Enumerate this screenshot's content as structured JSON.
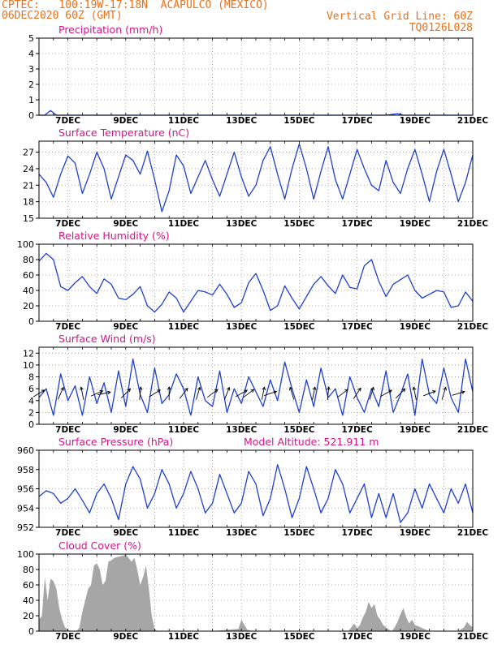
{
  "header": {
    "line1": "CPTEC:   100:19W-17:18N  ACAPULCO (MEXICO)",
    "line2": "06DEC2020 60Z (GMT)",
    "right1": "Vertical Grid Line: 60Z",
    "right2": "TQ0126L028"
  },
  "colors": {
    "header": "#e8711a",
    "title": "#d4148a",
    "line": "#1f3fcf",
    "cloud": "#a6a6a6"
  },
  "x_ticks": [
    "7DEC",
    "9DEC",
    "11DEC",
    "13DEC",
    "15DEC",
    "17DEC",
    "19DEC",
    "21DEC"
  ],
  "chart_data": [
    {
      "type": "line",
      "title": "Precipitation (mm/h)",
      "ylim": [
        0,
        5
      ],
      "yticks": [
        0,
        1,
        2,
        3,
        4,
        5
      ],
      "x_days": [
        6.0,
        6.2,
        6.4,
        6.6,
        8.0,
        12.0,
        15.0,
        18.0,
        18.4,
        18.6,
        21.0
      ],
      "values": [
        0,
        0,
        0.3,
        0,
        0,
        0,
        0,
        0,
        0.1,
        0,
        0
      ]
    },
    {
      "type": "line",
      "title": "Surface Temperature (nC)",
      "ylim": [
        15,
        29
      ],
      "yticks": [
        15,
        18,
        21,
        24,
        27
      ],
      "x_days": [
        6.0,
        6.25,
        6.5,
        6.75,
        7.0,
        7.25,
        7.5,
        7.75,
        8.0,
        8.25,
        8.5,
        8.75,
        9.0,
        9.25,
        9.5,
        9.75,
        10.0,
        10.25,
        10.5,
        10.75,
        11.0,
        11.25,
        11.5,
        11.75,
        12.0,
        12.25,
        12.5,
        12.75,
        13.0,
        13.25,
        13.5,
        13.75,
        14.0,
        14.25,
        14.5,
        14.75,
        15.0,
        15.25,
        15.5,
        15.75,
        16.0,
        16.25,
        16.5,
        16.75,
        17.0,
        17.25,
        17.5,
        17.75,
        18.0,
        18.25,
        18.5,
        18.75,
        19.0,
        19.25,
        19.5,
        19.75,
        20.0,
        20.25,
        20.5,
        20.75,
        21.0
      ],
      "values": [
        23.0,
        21.5,
        18.8,
        23.0,
        26.3,
        25.0,
        19.5,
        23.0,
        27.0,
        24.0,
        18.5,
        22.5,
        26.5,
        25.5,
        23.0,
        27.2,
        22.0,
        16.2,
        20.0,
        26.5,
        24.5,
        19.5,
        22.5,
        25.5,
        22.0,
        19.0,
        23.0,
        27.0,
        22.5,
        19.0,
        21.0,
        25.5,
        28.0,
        23.0,
        18.5,
        24.0,
        28.5,
        24.0,
        18.5,
        23.5,
        28.0,
        22.0,
        18.5,
        23.0,
        27.5,
        24.0,
        21.0,
        20.0,
        25.5,
        21.5,
        19.5,
        24.0,
        27.5,
        23.0,
        18.0,
        23.5,
        27.5,
        23.0,
        18.0,
        21.5,
        26.5
      ]
    },
    {
      "type": "line",
      "title": "Relative Humidity (%)",
      "ylim": [
        0,
        100
      ],
      "yticks": [
        0,
        20,
        40,
        60,
        80,
        100
      ],
      "x_days": [
        6.0,
        6.25,
        6.5,
        6.75,
        7.0,
        7.25,
        7.5,
        7.75,
        8.0,
        8.25,
        8.5,
        8.75,
        9.0,
        9.25,
        9.5,
        9.75,
        10.0,
        10.25,
        10.5,
        10.75,
        11.0,
        11.25,
        11.5,
        11.75,
        12.0,
        12.25,
        12.5,
        12.75,
        13.0,
        13.25,
        13.5,
        13.75,
        14.0,
        14.25,
        14.5,
        14.75,
        15.0,
        15.25,
        15.5,
        15.75,
        16.0,
        16.25,
        16.5,
        16.75,
        17.0,
        17.25,
        17.5,
        17.75,
        18.0,
        18.25,
        18.5,
        18.75,
        19.0,
        19.25,
        19.5,
        19.75,
        20.0,
        20.25,
        20.5,
        20.75,
        21.0
      ],
      "values": [
        78,
        88,
        80,
        45,
        40,
        50,
        58,
        45,
        36,
        55,
        48,
        30,
        28,
        35,
        45,
        20,
        12,
        22,
        38,
        30,
        12,
        26,
        40,
        38,
        34,
        48,
        35,
        18,
        24,
        50,
        62,
        40,
        14,
        20,
        46,
        30,
        16,
        32,
        48,
        58,
        46,
        36,
        60,
        44,
        42,
        72,
        80,
        52,
        32,
        48,
        54,
        60,
        40,
        30,
        35,
        40,
        38,
        18,
        20,
        38,
        26
      ]
    },
    {
      "type": "line",
      "title": "Surface Wind (m/s)",
      "ylim": [
        0,
        13
      ],
      "yticks": [
        0,
        2,
        4,
        6,
        8,
        10,
        12
      ],
      "x_days": [
        6.0,
        6.25,
        6.5,
        6.75,
        7.0,
        7.25,
        7.5,
        7.75,
        8.0,
        8.25,
        8.5,
        8.75,
        9.0,
        9.25,
        9.5,
        9.75,
        10.0,
        10.25,
        10.5,
        10.75,
        11.0,
        11.25,
        11.5,
        11.75,
        12.0,
        12.25,
        12.5,
        12.75,
        13.0,
        13.25,
        13.5,
        13.75,
        14.0,
        14.25,
        14.5,
        14.75,
        15.0,
        15.25,
        15.5,
        15.75,
        16.0,
        16.25,
        16.5,
        16.75,
        17.0,
        17.25,
        17.5,
        17.75,
        18.0,
        18.25,
        18.5,
        18.75,
        19.0,
        19.25,
        19.5,
        19.75,
        20.0,
        20.25,
        20.5,
        20.75,
        21.0
      ],
      "values": [
        4.5,
        6.0,
        1.5,
        8.5,
        4.0,
        6.5,
        1.5,
        8.0,
        3.5,
        7.0,
        2.0,
        9.0,
        3.0,
        11.0,
        5.0,
        2.0,
        9.5,
        3.5,
        5.0,
        8.5,
        6.0,
        1.5,
        8.0,
        4.0,
        3.0,
        9.0,
        2.0,
        6.0,
        3.5,
        8.0,
        5.5,
        3.0,
        7.5,
        4.0,
        10.5,
        6.0,
        2.0,
        7.5,
        3.0,
        9.5,
        4.5,
        6.0,
        1.5,
        8.0,
        4.5,
        2.0,
        6.0,
        3.0,
        9.0,
        2.0,
        5.0,
        8.5,
        1.5,
        11.0,
        5.0,
        3.5,
        9.5,
        4.5,
        2.0,
        11.0,
        5.5
      ],
      "wind_barbs": [
        {
          "day": 6.0,
          "u": 1.0,
          "v": 0.6
        },
        {
          "day": 6.75,
          "u": 0.4,
          "v": 0.9
        },
        {
          "day": 7.5,
          "u": -0.2,
          "v": 1.0
        },
        {
          "day": 8.0,
          "u": 0.9,
          "v": 0.4
        },
        {
          "day": 8.25,
          "u": 0.95,
          "v": 0.2
        },
        {
          "day": 9.0,
          "u": 0.7,
          "v": 0.7
        },
        {
          "day": 9.5,
          "u": 0.1,
          "v": 1.0
        },
        {
          "day": 10.0,
          "u": 0.8,
          "v": 0.5
        },
        {
          "day": 10.5,
          "u": 0.0,
          "v": 1.0
        },
        {
          "day": 11.0,
          "u": 0.6,
          "v": 0.8
        },
        {
          "day": 11.5,
          "u": 0.3,
          "v": 1.0
        },
        {
          "day": 12.0,
          "u": 0.8,
          "v": 0.6
        },
        {
          "day": 12.5,
          "u": 0.4,
          "v": 1.0
        },
        {
          "day": 13.0,
          "u": 0.9,
          "v": 0.5
        },
        {
          "day": 13.25,
          "u": 0.8,
          "v": 0.6
        },
        {
          "day": 13.75,
          "u": 0.2,
          "v": 1.0
        },
        {
          "day": 14.0,
          "u": 0.9,
          "v": 0.3
        },
        {
          "day": 14.75,
          "u": -0.3,
          "v": 1.0
        },
        {
          "day": 15.5,
          "u": 0.2,
          "v": 1.0
        },
        {
          "day": 16.0,
          "u": 0.1,
          "v": 1.0
        },
        {
          "day": 16.5,
          "u": 0.8,
          "v": 0.6
        },
        {
          "day": 17.0,
          "u": 0.6,
          "v": 0.9
        },
        {
          "day": 17.5,
          "u": 0.3,
          "v": 1.0
        },
        {
          "day": 18.0,
          "u": 0.9,
          "v": 0.5
        },
        {
          "day": 18.5,
          "u": 0.7,
          "v": 0.7
        },
        {
          "day": 19.0,
          "u": -0.2,
          "v": 1.0
        },
        {
          "day": 19.5,
          "u": 1.0,
          "v": 0.4
        },
        {
          "day": 20.0,
          "u": 0.3,
          "v": 1.0
        },
        {
          "day": 20.5,
          "u": 1.0,
          "v": 0.3
        }
      ]
    },
    {
      "type": "line",
      "title": "Surface Pressure (hPa)",
      "annotation": "Model Altitude: 521.911 m",
      "ylim": [
        952,
        960
      ],
      "yticks": [
        952,
        954,
        956,
        958,
        960
      ],
      "x_days": [
        6.0,
        6.25,
        6.5,
        6.75,
        7.0,
        7.25,
        7.5,
        7.75,
        8.0,
        8.25,
        8.5,
        8.75,
        9.0,
        9.25,
        9.5,
        9.75,
        10.0,
        10.25,
        10.5,
        10.75,
        11.0,
        11.25,
        11.5,
        11.75,
        12.0,
        12.25,
        12.5,
        12.75,
        13.0,
        13.25,
        13.5,
        13.75,
        14.0,
        14.25,
        14.5,
        14.75,
        15.0,
        15.25,
        15.5,
        15.75,
        16.0,
        16.25,
        16.5,
        16.75,
        17.0,
        17.25,
        17.5,
        17.75,
        18.0,
        18.25,
        18.5,
        18.75,
        19.0,
        19.25,
        19.5,
        19.75,
        20.0,
        20.25,
        20.5,
        20.75,
        21.0
      ],
      "values": [
        955.2,
        955.8,
        955.5,
        954.5,
        955.0,
        956.0,
        954.8,
        953.5,
        955.5,
        956.5,
        955.0,
        952.8,
        956.5,
        958.3,
        957.0,
        954.0,
        955.5,
        958.0,
        956.5,
        954.0,
        955.5,
        957.8,
        956.0,
        953.5,
        954.5,
        957.5,
        955.5,
        953.5,
        954.5,
        957.8,
        956.5,
        953.2,
        955.0,
        958.5,
        956.0,
        953.0,
        955.0,
        958.3,
        956.0,
        953.5,
        955.0,
        958.0,
        956.5,
        953.5,
        955.0,
        956.5,
        953.0,
        955.5,
        953.0,
        955.5,
        952.5,
        953.5,
        956.0,
        954.0,
        956.5,
        955.0,
        953.5,
        956.0,
        954.5,
        956.5,
        953.5
      ]
    },
    {
      "type": "area",
      "title": "Cloud Cover (%)",
      "ylim": [
        0,
        100
      ],
      "yticks": [
        0,
        20,
        40,
        60,
        80,
        100
      ],
      "x_days": [
        6.0,
        6.1,
        6.2,
        6.3,
        6.4,
        6.5,
        6.6,
        6.7,
        6.8,
        6.9,
        7.0,
        7.1,
        7.2,
        7.3,
        7.4,
        7.5,
        7.6,
        7.7,
        7.8,
        7.9,
        8.0,
        8.1,
        8.2,
        8.3,
        8.4,
        8.5,
        8.6,
        8.7,
        8.8,
        8.9,
        9.0,
        9.1,
        9.2,
        9.3,
        9.4,
        9.5,
        9.6,
        9.7,
        9.8,
        9.9,
        10.0,
        10.1,
        10.2,
        10.3,
        11.0,
        12.0,
        12.9,
        13.0,
        13.1,
        13.2,
        13.4,
        14.5,
        16.7,
        16.8,
        16.9,
        17.0,
        17.1,
        17.2,
        17.3,
        17.4,
        17.5,
        17.6,
        17.7,
        17.8,
        17.9,
        18.0,
        18.1,
        18.2,
        18.3,
        18.4,
        18.5,
        18.6,
        18.7,
        18.8,
        18.9,
        19.0,
        19.5,
        20.5,
        20.7,
        20.8,
        20.9,
        21.0
      ],
      "values": [
        15,
        20,
        70,
        40,
        68,
        65,
        55,
        30,
        15,
        5,
        2,
        0,
        0,
        0,
        5,
        25,
        40,
        55,
        60,
        85,
        88,
        80,
        60,
        65,
        90,
        92,
        95,
        96,
        97,
        98,
        99,
        95,
        90,
        95,
        80,
        60,
        70,
        85,
        55,
        20,
        3,
        0,
        0,
        0,
        0,
        0,
        3,
        15,
        8,
        2,
        0,
        0,
        0,
        5,
        10,
        4,
        8,
        18,
        25,
        38,
        30,
        35,
        20,
        15,
        8,
        5,
        2,
        0,
        5,
        12,
        22,
        30,
        18,
        10,
        15,
        8,
        0,
        0,
        5,
        12,
        8,
        5
      ]
    }
  ]
}
